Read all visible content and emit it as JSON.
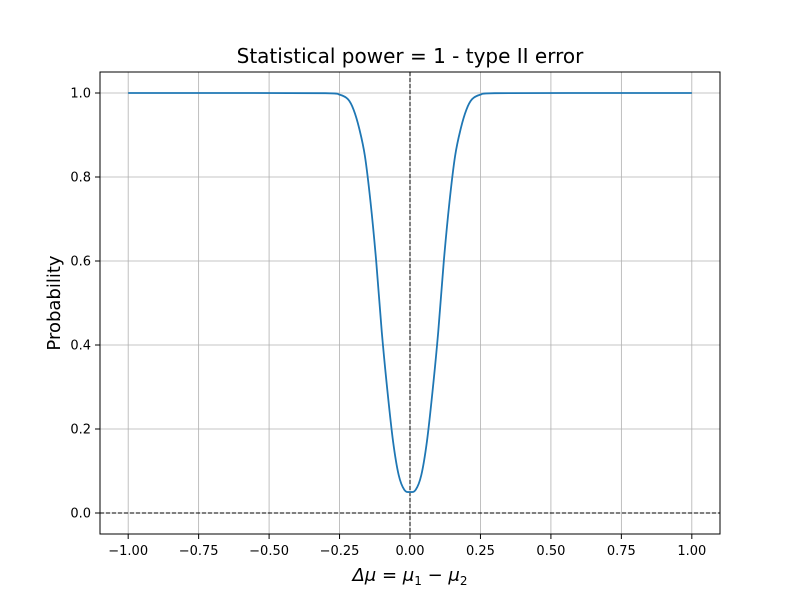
{
  "chart_data": {
    "type": "line",
    "title": "Statistical power = 1 - type II error",
    "ylabel": "Probability",
    "xlabel": {
      "prefix": "Δμ = μ",
      "sub1": "1",
      "minus": " − μ",
      "sub2": "2"
    },
    "xlim": [
      -1.1,
      1.1
    ],
    "ylim": [
      -0.05,
      1.05
    ],
    "x_ticks": [
      -1.0,
      -0.75,
      -0.5,
      -0.25,
      0.0,
      0.25,
      0.5,
      0.75,
      1.0
    ],
    "x_tick_labels": [
      "−1.00",
      "−0.75",
      "−0.50",
      "−0.25",
      "0.00",
      "0.25",
      "0.50",
      "0.75",
      "1.00"
    ],
    "y_ticks": [
      0.0,
      0.2,
      0.4,
      0.6,
      0.8,
      1.0
    ],
    "y_tick_labels": [
      "0.0",
      "0.2",
      "0.4",
      "0.6",
      "0.8",
      "1.0"
    ],
    "grid": true,
    "reference_lines": [
      {
        "orientation": "vertical",
        "value": 0.0,
        "style": "dashed",
        "color": "#000000"
      },
      {
        "orientation": "horizontal",
        "value": 0.0,
        "style": "dashed",
        "color": "#000000"
      }
    ],
    "series": [
      {
        "color": "#1f77b4",
        "x": [
          -1.0,
          -0.6,
          -0.3,
          -0.25,
          -0.22,
          -0.2,
          -0.18,
          -0.16,
          -0.14,
          -0.12,
          -0.1,
          -0.08,
          -0.06,
          -0.04,
          -0.02,
          0.0,
          0.02,
          0.04,
          0.06,
          0.08,
          0.1,
          0.12,
          0.14,
          0.16,
          0.18,
          0.2,
          0.22,
          0.25,
          0.3,
          0.6,
          1.0
        ],
        "y": [
          1.0,
          1.0,
          0.9996,
          0.996,
          0.985,
          0.96,
          0.915,
          0.85,
          0.74,
          0.6,
          0.43,
          0.29,
          0.17,
          0.09,
          0.055,
          0.05,
          0.055,
          0.09,
          0.17,
          0.29,
          0.43,
          0.6,
          0.74,
          0.85,
          0.915,
          0.96,
          0.985,
          0.996,
          0.9996,
          1.0,
          1.0
        ]
      }
    ]
  }
}
